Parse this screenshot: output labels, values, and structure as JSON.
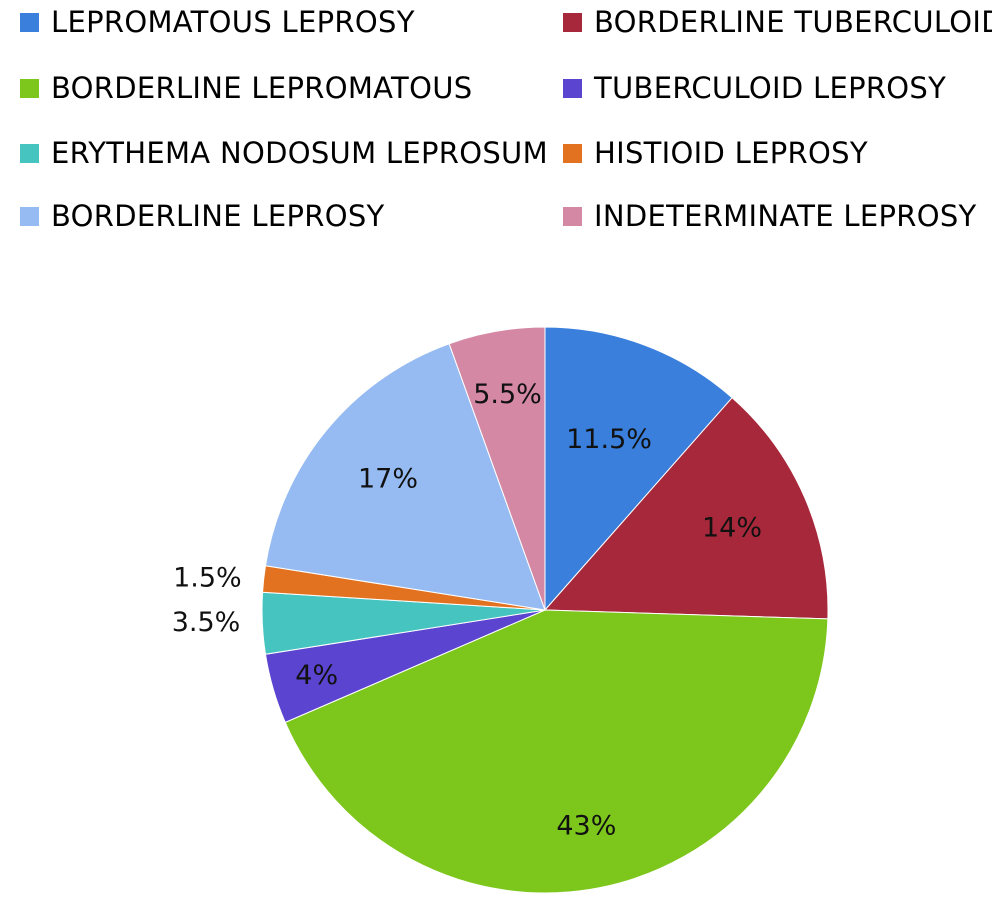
{
  "chart_data": {
    "type": "pie",
    "title": "",
    "legend_placement": "top",
    "slices": [
      {
        "name": "LEPROMATOUS LEPROSY",
        "value": 11.5,
        "label": "11.5%",
        "color": "#3a7fdc"
      },
      {
        "name": "BORDERLINE TUBERCULOID",
        "value": 14,
        "label": "14%",
        "color": "#a8283b"
      },
      {
        "name": "BORDERLINE LEPROMATOUS",
        "value": 43,
        "label": "43%",
        "color": "#7dc61c"
      },
      {
        "name": "TUBERCULOID LEPROSY",
        "value": 4,
        "label": "4%",
        "color": "#5a44d0"
      },
      {
        "name": "ERYTHEMA NODOSUM LEPROSUM",
        "value": 3.5,
        "label": "3.5%",
        "color": "#46c4c0"
      },
      {
        "name": "HISTIOID LEPROSY",
        "value": 1.5,
        "label": "1.5%",
        "color": "#e27220"
      },
      {
        "name": "BORDERLINE LEPROSY",
        "value": 17,
        "label": "17%",
        "color": "#96bbf2"
      },
      {
        "name": "INDETERMINATE LEPROSY",
        "value": 5.5,
        "label": "5.5%",
        "color": "#d488a4"
      }
    ]
  }
}
